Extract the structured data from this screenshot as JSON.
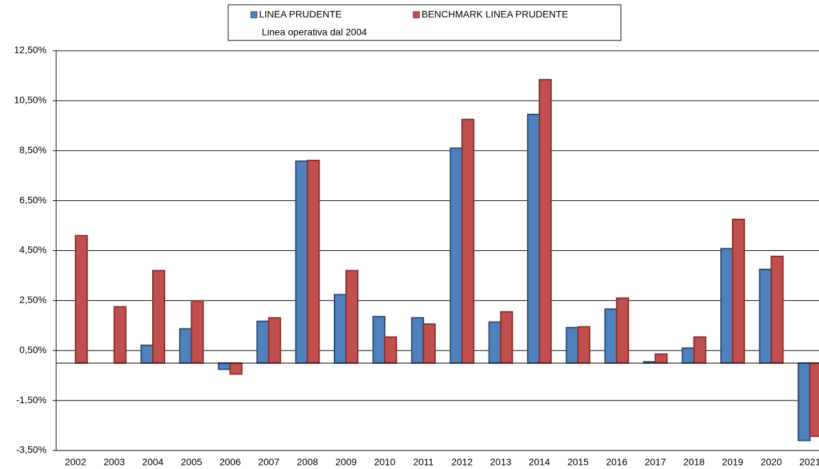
{
  "chart_data": {
    "type": "bar",
    "legend_note": "Linea operativa dal 2004",
    "categories": [
      "2002",
      "2003",
      "2004",
      "2005",
      "2006",
      "2007",
      "2008",
      "2009",
      "2010",
      "2011",
      "2012",
      "2013",
      "2014",
      "2015",
      "2016",
      "2017",
      "2018",
      "2019",
      "2020",
      "2021"
    ],
    "series": [
      {
        "name": "LINEA PRUDENTE",
        "color": "#4f81bd",
        "values": [
          null,
          null,
          0.71,
          1.37,
          -0.25,
          1.67,
          8.08,
          2.74,
          1.86,
          1.81,
          8.6,
          1.64,
          9.95,
          1.42,
          2.16,
          0.05,
          0.6,
          4.58,
          3.75,
          -3.1
        ]
      },
      {
        "name": "BENCHMARK LINEA PRUDENTE",
        "color": "#c0504d",
        "values": [
          5.1,
          2.25,
          3.7,
          2.49,
          -0.44,
          1.81,
          8.11,
          3.7,
          1.04,
          1.56,
          9.75,
          2.05,
          11.34,
          1.45,
          2.6,
          0.36,
          1.04,
          5.75,
          4.27,
          -2.93
        ]
      }
    ],
    "ylim": [
      -3.5,
      12.5
    ],
    "yticks": [
      {
        "value": -3.5,
        "label": "-3,50%"
      },
      {
        "value": -1.5,
        "label": "-1,50%"
      },
      {
        "value": 0.5,
        "label": "0,50%"
      },
      {
        "value": 2.5,
        "label": "2,50%"
      },
      {
        "value": 4.5,
        "label": "4,50%"
      },
      {
        "value": 6.5,
        "label": "6,50%"
      },
      {
        "value": 8.5,
        "label": "8,50%"
      },
      {
        "value": 10.5,
        "label": "10,50%"
      },
      {
        "value": 12.5,
        "label": "12,50%"
      }
    ],
    "grid": true
  }
}
